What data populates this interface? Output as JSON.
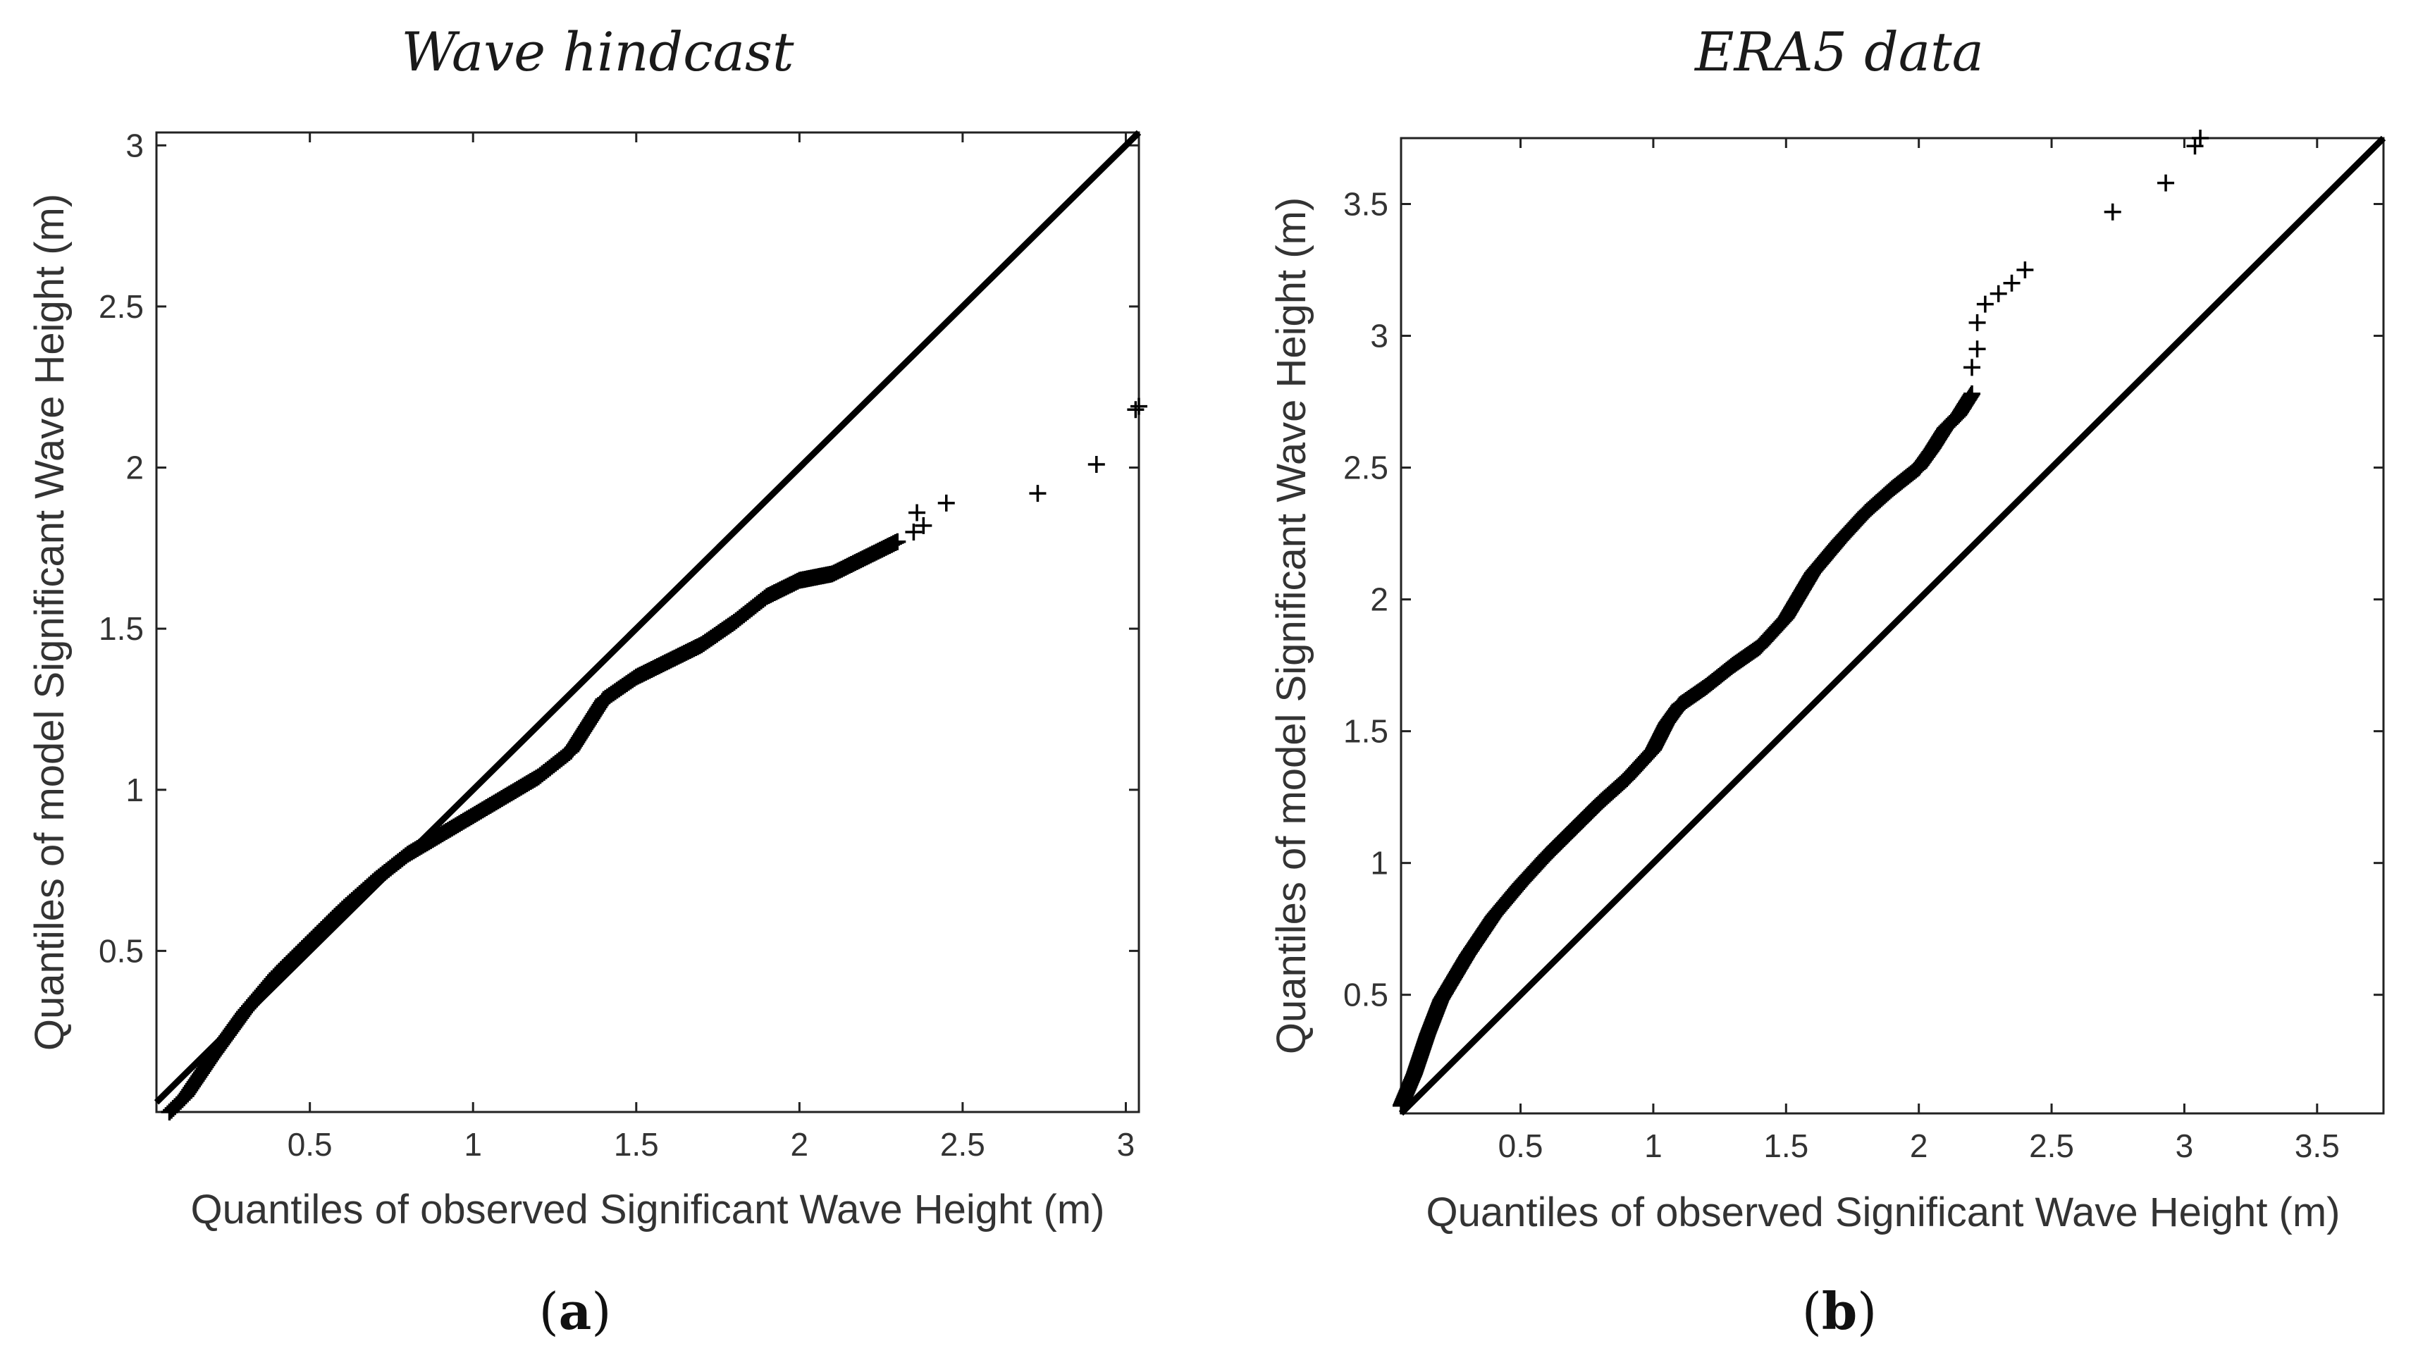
{
  "colors": {
    "background": "#ffffff",
    "marker": "#000000",
    "axis": "#222222",
    "text": "#333333"
  },
  "chart_data": [
    {
      "type": "scatter",
      "plot_kind": "quantile-quantile",
      "panel_label": {
        "open": "(",
        "letter": "a",
        "close": ")"
      },
      "title": "Wave hindcast",
      "xlabel": "Quantiles of observed Significant Wave Height  (m)",
      "ylabel": "Quantiles of model Significant Wave Height  (m)",
      "xlim": [
        0.03,
        3.04
      ],
      "ylim": [
        0.0,
        3.04
      ],
      "xticks": [
        0.5,
        1,
        1.5,
        2,
        2.5,
        3
      ],
      "xtick_labels": [
        "0.5",
        "1",
        "1.5",
        "2",
        "2.5",
        "3"
      ],
      "yticks": [
        0.5,
        1,
        1.5,
        2,
        2.5,
        3
      ],
      "ytick_labels": [
        "0.5",
        "1",
        "1.5",
        "2",
        "2.5",
        "3"
      ],
      "grid": false,
      "marker": "+",
      "reference_line": {
        "label": "y = x",
        "from": [
          0.03,
          0.03
        ],
        "to": [
          3.04,
          3.04
        ]
      },
      "series": [
        {
          "name": "quantiles",
          "curve": [
            [
              0.07,
              0.0
            ],
            [
              0.12,
              0.05
            ],
            [
              0.2,
              0.17
            ],
            [
              0.3,
              0.31
            ],
            [
              0.4,
              0.43
            ],
            [
              0.5,
              0.53
            ],
            [
              0.6,
              0.63
            ],
            [
              0.7,
              0.72
            ],
            [
              0.8,
              0.8
            ],
            [
              0.9,
              0.86
            ],
            [
              1.0,
              0.92
            ],
            [
              1.1,
              0.98
            ],
            [
              1.2,
              1.04
            ],
            [
              1.3,
              1.12
            ],
            [
              1.35,
              1.2
            ],
            [
              1.4,
              1.28
            ],
            [
              1.5,
              1.35
            ],
            [
              1.6,
              1.4
            ],
            [
              1.7,
              1.45
            ],
            [
              1.8,
              1.52
            ],
            [
              1.9,
              1.6
            ],
            [
              2.0,
              1.65
            ],
            [
              2.1,
              1.67
            ],
            [
              2.2,
              1.72
            ],
            [
              2.3,
              1.77
            ]
          ],
          "tail": [
            [
              2.35,
              1.8
            ],
            [
              2.38,
              1.82
            ],
            [
              2.36,
              1.86
            ],
            [
              2.45,
              1.89
            ],
            [
              2.73,
              1.92
            ],
            [
              2.91,
              2.01
            ],
            [
              3.03,
              2.18
            ],
            [
              3.04,
              2.19
            ]
          ]
        }
      ]
    },
    {
      "type": "scatter",
      "plot_kind": "quantile-quantile",
      "panel_label": {
        "open": "(",
        "letter": "b",
        "close": ")"
      },
      "title": "ERA5 data",
      "xlabel": "Quantiles of observed Significant Wave Height  (m)",
      "ylabel": "Quantiles of model Significant Wave Height  (m)",
      "xlim": [
        0.05,
        3.75
      ],
      "ylim": [
        0.05,
        3.75
      ],
      "xticks": [
        0.5,
        1,
        1.5,
        2,
        2.5,
        3,
        3.5
      ],
      "xtick_labels": [
        "0.5",
        "1",
        "1.5",
        "2",
        "2.5",
        "3",
        "3.5"
      ],
      "yticks": [
        0.5,
        1,
        1.5,
        2,
        2.5,
        3,
        3.5
      ],
      "ytick_labels": [
        "0.5",
        "1",
        "1.5",
        "2",
        "2.5",
        "3",
        "3.5"
      ],
      "grid": false,
      "marker": "+",
      "reference_line": {
        "label": "y = x",
        "from": [
          0.05,
          0.05
        ],
        "to": [
          3.75,
          3.75
        ]
      },
      "series": [
        {
          "name": "quantiles",
          "curve": [
            [
              0.05,
              0.08
            ],
            [
              0.1,
              0.2
            ],
            [
              0.15,
              0.35
            ],
            [
              0.2,
              0.48
            ],
            [
              0.3,
              0.65
            ],
            [
              0.4,
              0.8
            ],
            [
              0.5,
              0.92
            ],
            [
              0.6,
              1.03
            ],
            [
              0.7,
              1.13
            ],
            [
              0.8,
              1.23
            ],
            [
              0.9,
              1.32
            ],
            [
              1.0,
              1.43
            ],
            [
              1.05,
              1.53
            ],
            [
              1.1,
              1.6
            ],
            [
              1.2,
              1.67
            ],
            [
              1.3,
              1.75
            ],
            [
              1.4,
              1.82
            ],
            [
              1.5,
              1.93
            ],
            [
              1.6,
              2.1
            ],
            [
              1.7,
              2.22
            ],
            [
              1.8,
              2.33
            ],
            [
              1.9,
              2.42
            ],
            [
              2.0,
              2.5
            ],
            [
              2.05,
              2.57
            ],
            [
              2.1,
              2.65
            ],
            [
              2.15,
              2.7
            ],
            [
              2.2,
              2.78
            ]
          ],
          "tail": [
            [
              2.2,
              2.88
            ],
            [
              2.22,
              2.95
            ],
            [
              2.22,
              3.05
            ],
            [
              2.25,
              3.12
            ],
            [
              2.3,
              3.16
            ],
            [
              2.35,
              3.2
            ],
            [
              2.4,
              3.25
            ],
            [
              2.73,
              3.47
            ],
            [
              2.93,
              3.58
            ],
            [
              3.04,
              3.72
            ],
            [
              3.06,
              3.75
            ]
          ]
        }
      ]
    }
  ]
}
